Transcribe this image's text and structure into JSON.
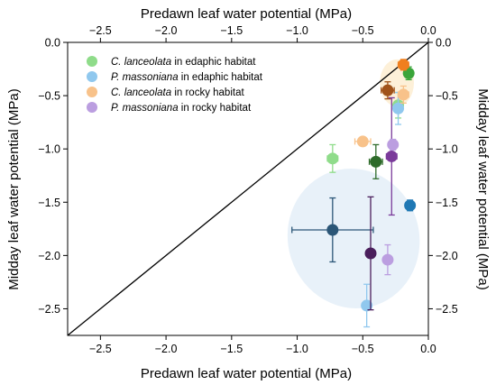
{
  "chart_data": {
    "type": "scatter",
    "title": "",
    "xlabel_bottom": "Predawn leaf water potential (MPa)",
    "xlabel_top": "Predawn leaf water potential (MPa)",
    "ylabel_left": "Midday leaf water potential (MPa)",
    "ylabel_right": "Midday leaf water potential (MPa)",
    "xlim": [
      -2.75,
      0.0
    ],
    "ylim": [
      -2.75,
      0.0
    ],
    "x_ticks": [
      -2.5,
      -2.0,
      -1.5,
      -1.0,
      -0.5,
      0.0
    ],
    "y_ticks": [
      -2.5,
      -2.0,
      -1.5,
      -1.0,
      -0.5,
      0.0
    ],
    "x_tick_labels": [
      "−2.5",
      "−2.0",
      "−1.5",
      "−1.0",
      "−0.5",
      "0.0"
    ],
    "y_tick_labels": [
      "−2.5",
      "−2.0",
      "−1.5",
      "−1.0",
      "−0.5",
      "0.0"
    ],
    "grid": false,
    "legend_position": "top-left",
    "reference_line": {
      "x": [
        -2.75,
        0.0
      ],
      "y": [
        -2.75,
        0.0
      ],
      "color": "#000000"
    },
    "highlight_regions": [
      {
        "cx": -0.24,
        "cy": -0.38,
        "rx": 0.13,
        "ry": 0.22,
        "rotation_deg": 0,
        "color": "#fdf0d8"
      },
      {
        "cx": -0.57,
        "cy": -1.84,
        "rx": 0.5,
        "ry": 0.66,
        "rotation_deg": -18,
        "color": "#e8f1f9"
      }
    ],
    "legend": [
      {
        "label_species": "C. lanceolata",
        "label_suffix": " in edaphic habitat",
        "color": "#8fdc8a"
      },
      {
        "label_species": "P. massoniana",
        "label_suffix": " in edaphic habitat",
        "color": "#90c8ee"
      },
      {
        "label_species": "C. lanceolata",
        "label_suffix": " in rocky habitat",
        "color": "#f8c28a"
      },
      {
        "label_species": "P. massoniana",
        "label_suffix": " in rocky habitat",
        "color": "#bb9ee0"
      }
    ],
    "series": [
      {
        "name": "C. lanceolata in edaphic habitat",
        "points": [
          {
            "x": -0.73,
            "y": -1.09,
            "xerr": 0.04,
            "yerr": 0.13,
            "color": "#8fdc8a"
          },
          {
            "x": -0.4,
            "y": -1.12,
            "xerr": 0.05,
            "yerr": 0.16,
            "color": "#2e6b2a"
          },
          {
            "x": -0.23,
            "y": -0.59,
            "xerr": 0.03,
            "yerr": 0.12,
            "color": "#8fdc8a"
          },
          {
            "x": -0.15,
            "y": -0.29,
            "xerr": 0.03,
            "yerr": 0.06,
            "color": "#3aa53a"
          }
        ]
      },
      {
        "name": "P. massoniana in edaphic habitat",
        "points": [
          {
            "x": -0.73,
            "y": -1.76,
            "xerr": 0.31,
            "yerr": 0.3,
            "color": "#2b5677"
          },
          {
            "x": -0.47,
            "y": -2.47,
            "xerr": 0.03,
            "yerr": 0.2,
            "color": "#90c8ee"
          },
          {
            "x": -0.14,
            "y": -1.53,
            "xerr": 0.02,
            "yerr": 0.05,
            "color": "#1f78b4"
          },
          {
            "x": -0.23,
            "y": -0.62,
            "xerr": 0.02,
            "yerr": 0.15,
            "color": "#90c8ee"
          }
        ]
      },
      {
        "name": "C. lanceolata in rocky habitat",
        "points": [
          {
            "x": -0.5,
            "y": -0.93,
            "xerr": 0.06,
            "yerr": 0.03,
            "color": "#f8c28a"
          },
          {
            "x": -0.31,
            "y": -0.45,
            "xerr": 0.05,
            "yerr": 0.08,
            "color": "#a0531a"
          },
          {
            "x": -0.19,
            "y": -0.49,
            "xerr": 0.04,
            "yerr": 0.08,
            "color": "#f8c28a"
          },
          {
            "x": -0.19,
            "y": -0.21,
            "xerr": 0.04,
            "yerr": 0.05,
            "color": "#f07f1e"
          }
        ]
      },
      {
        "name": "P. massoniana in rocky habitat",
        "points": [
          {
            "x": -0.44,
            "y": -1.98,
            "xerr": 0.03,
            "yerr": 0.53,
            "color": "#4a1f5c"
          },
          {
            "x": -0.31,
            "y": -2.04,
            "xerr": 0.03,
            "yerr": 0.14,
            "color": "#bb9ee0"
          },
          {
            "x": -0.28,
            "y": -1.07,
            "xerr": 0.04,
            "yerr": 0.55,
            "color": "#7a3a9a"
          },
          {
            "x": -0.27,
            "y": -0.96,
            "xerr": 0.03,
            "yerr": 0.05,
            "color": "#bb9ee0"
          }
        ]
      }
    ]
  }
}
